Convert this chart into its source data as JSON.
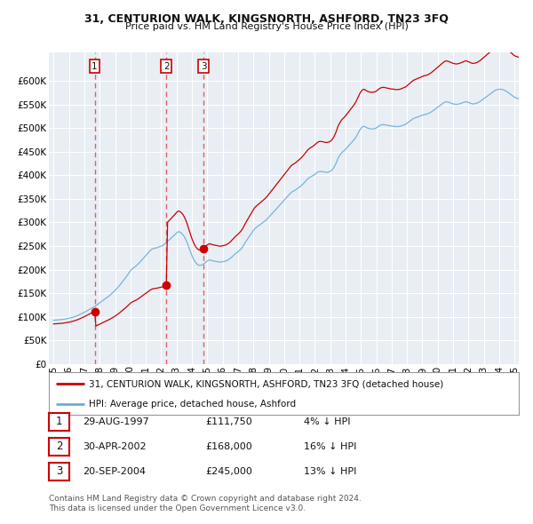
{
  "title": "31, CENTURION WALK, KINGSNORTH, ASHFORD, TN23 3FQ",
  "subtitle": "Price paid vs. HM Land Registry's House Price Index (HPI)",
  "legend_line1": "31, CENTURION WALK, KINGSNORTH, ASHFORD, TN23 3FQ (detached house)",
  "legend_line2": "HPI: Average price, detached house, Ashford",
  "footnote1": "Contains HM Land Registry data © Crown copyright and database right 2024.",
  "footnote2": "This data is licensed under the Open Government Licence v3.0.",
  "sales": [
    {
      "label": "1",
      "date": "29-AUG-1997",
      "price": 111750,
      "pct": "4%",
      "dir": "↓",
      "x": 1997.667
    },
    {
      "label": "2",
      "date": "30-APR-2002",
      "price": 168000,
      "pct": "16%",
      "dir": "↓",
      "x": 2002.333
    },
    {
      "label": "3",
      "date": "20-SEP-2004",
      "price": 245000,
      "pct": "13%",
      "dir": "↓",
      "x": 2004.75
    }
  ],
  "hpi_color": "#6baed6",
  "sale_color": "#cc0000",
  "dashed_color": "#e06060",
  "vline1_color": "#aaaaaa",
  "background_color": "#e8eef4",
  "grid_color": "#ffffff",
  "ylim": [
    0,
    660000
  ],
  "yticks": [
    0,
    50000,
    100000,
    150000,
    200000,
    250000,
    300000,
    350000,
    400000,
    450000,
    500000,
    550000,
    600000
  ],
  "xlim": [
    1994.7,
    2025.3
  ],
  "xticks": [
    1995,
    1996,
    1997,
    1998,
    1999,
    2000,
    2001,
    2002,
    2003,
    2004,
    2005,
    2006,
    2007,
    2008,
    2009,
    2010,
    2011,
    2012,
    2013,
    2014,
    2015,
    2016,
    2017,
    2018,
    2019,
    2020,
    2021,
    2022,
    2023,
    2024,
    2025
  ],
  "hpi_base_values": [
    93000,
    93200,
    93400,
    93600,
    93800,
    94000,
    94300,
    94600,
    95000,
    95500,
    96000,
    96500,
    97200,
    97800,
    98500,
    99200,
    100000,
    101000,
    102000,
    103200,
    104500,
    105800,
    107200,
    108500,
    110000,
    111500,
    113000,
    114500,
    116000,
    117500,
    119000,
    120500,
    122000,
    124000,
    126000,
    128000,
    130000,
    132000,
    134000,
    136000,
    138000,
    140000,
    142000,
    144000,
    146000,
    148500,
    151000,
    153500,
    156000,
    159000,
    162000,
    165000,
    168500,
    172000,
    175500,
    179000,
    182500,
    186000,
    190000,
    194000,
    198000,
    201000,
    203000,
    205000,
    207000,
    209500,
    212000,
    215000,
    218000,
    221000,
    224000,
    227000,
    230000,
    233000,
    236000,
    239000,
    242000,
    244000,
    245000,
    245500,
    246000,
    247000,
    248000,
    249000,
    250000,
    251000,
    253000,
    255000,
    257500,
    260000,
    262500,
    265000,
    267500,
    270000,
    272500,
    275000,
    278000,
    280000,
    280500,
    279000,
    277000,
    274000,
    270000,
    265000,
    259000,
    252000,
    244000,
    237000,
    230000,
    224000,
    219000,
    215000,
    212000,
    210000,
    209000,
    209500,
    210500,
    212000,
    214000,
    216000,
    218500,
    220000,
    220500,
    220000,
    219000,
    218500,
    218000,
    217500,
    217000,
    216500,
    216000,
    216500,
    217000,
    217500,
    218000,
    219000,
    220500,
    222000,
    224000,
    226500,
    229000,
    231500,
    234000,
    236000,
    238000,
    240500,
    243000,
    246000,
    250000,
    254500,
    259000,
    263000,
    267000,
    271000,
    275000,
    279000,
    283000,
    286500,
    289000,
    291000,
    293000,
    295000,
    297000,
    299000,
    301000,
    303000,
    305500,
    308000,
    311000,
    314000,
    317000,
    320000,
    323000,
    326000,
    329000,
    332000,
    335000,
    338000,
    341000,
    344000,
    347000,
    350000,
    353000,
    356000,
    359000,
    362000,
    364500,
    366000,
    367500,
    369000,
    371000,
    373000,
    375000,
    377000,
    379500,
    382000,
    385000,
    388000,
    391000,
    393500,
    395500,
    397000,
    398500,
    400000,
    402000,
    404000,
    406000,
    407500,
    408000,
    408000,
    407500,
    407000,
    406500,
    406000,
    406500,
    407000,
    408000,
    410000,
    413000,
    417000,
    422000,
    428000,
    435000,
    440000,
    444000,
    447500,
    450000,
    452000,
    455000,
    458000,
    461000,
    464000,
    467000,
    470000,
    473000,
    476500,
    480000,
    485000,
    490000,
    495000,
    499000,
    502000,
    503500,
    503000,
    501500,
    500000,
    499000,
    498500,
    498000,
    498000,
    498500,
    499000,
    500000,
    502000,
    504000,
    505500,
    506500,
    507000,
    507000,
    506500,
    506000,
    505500,
    505000,
    504500,
    504000,
    504000,
    503500,
    503000,
    503000,
    503000,
    503500,
    504000,
    505000,
    506000,
    507000,
    508000,
    510000,
    512000,
    514000,
    516000,
    518000,
    520000,
    521000,
    522000,
    523000,
    524000,
    525000,
    526000,
    527000,
    528000,
    528500,
    529000,
    530000,
    531000,
    532500,
    534000,
    536000,
    538000,
    540000,
    542000,
    544000,
    546000,
    548000,
    550000,
    552000,
    554000,
    555000,
    555500,
    555000,
    554000,
    553000,
    552000,
    551000,
    550500,
    550000,
    550000,
    550500,
    551000,
    552000,
    553000,
    554000,
    555000,
    555500,
    555000,
    554000,
    553000,
    552000,
    551000,
    551000,
    551500,
    552000,
    553000,
    554500,
    556000,
    558000,
    560000,
    562000,
    564000,
    566000,
    568000,
    570000,
    572000,
    574000,
    576000,
    578000,
    580000,
    581000,
    581500,
    582000,
    582000,
    581500,
    581000,
    580000,
    578500,
    577000,
    575000,
    573000,
    571000,
    569000,
    567000,
    565000,
    564000,
    563000,
    562500,
    562000,
    562000,
    562500,
    563000,
    564000,
    565500,
    567000,
    568500
  ]
}
